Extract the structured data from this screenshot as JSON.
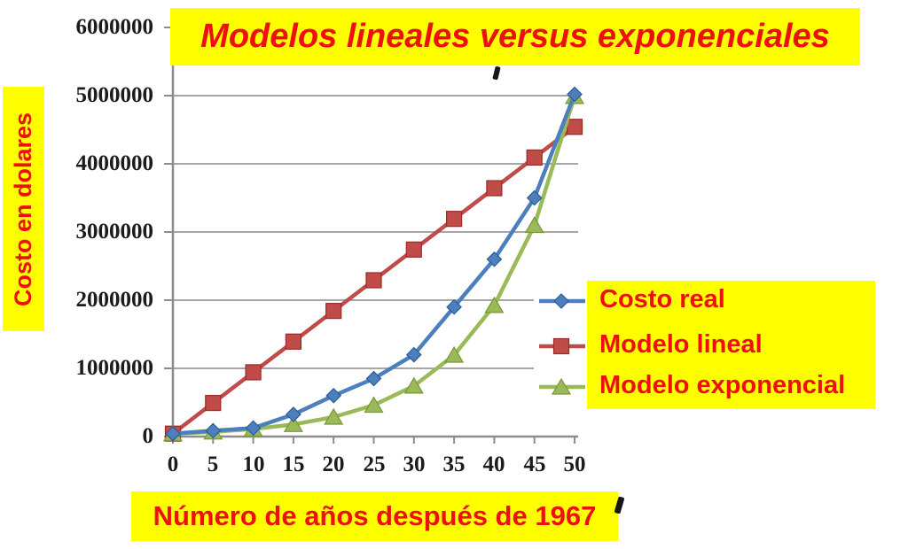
{
  "title": {
    "text": "Modelos lineales versus exponenciales"
  },
  "y_axis": {
    "label": "Costo en dolares",
    "ticks": [
      "6000000",
      "5000000",
      "4000000",
      "3000000",
      "2000000",
      "1000000",
      "0"
    ]
  },
  "x_axis": {
    "label": "Número de años después de 1967",
    "ticks": [
      "0",
      "5",
      "10",
      "15",
      "20",
      "25",
      "30",
      "35",
      "40",
      "45",
      "50"
    ]
  },
  "legend": {
    "items": [
      {
        "label": "Costo real",
        "color": "#4c7fbb",
        "marker": "diamond"
      },
      {
        "label": "Modelo lineal",
        "color": "#bf4c49",
        "marker": "square"
      },
      {
        "label": "Modelo exponencial",
        "color": "#9aba59",
        "marker": "triangle"
      }
    ]
  },
  "colors": {
    "background": "#ffffff",
    "highlight_yellow": "#ffff00",
    "label_red": "#ee0f0f",
    "grid": "#a6a6a6",
    "axis": "#8c8c8c",
    "tick_text": "#1c1c1c",
    "series_blue": "#4c7fbb",
    "series_red": "#bf4c49",
    "series_green": "#9aba59"
  },
  "chart_data": {
    "type": "line",
    "title": "Modelos lineales versus exponenciales",
    "xlabel": "Número de años después de 1967",
    "ylabel": "Costo en dolares",
    "x": [
      0,
      5,
      10,
      15,
      20,
      25,
      30,
      35,
      40,
      45,
      50
    ],
    "series": [
      {
        "name": "Costo real",
        "color": "#4c7fbb",
        "marker": "diamond",
        "values": [
          42500,
          86100,
          125000,
          324300,
          600000,
          850000,
          1200000,
          1900000,
          2600000,
          3500000,
          5020000
        ]
      },
      {
        "name": "Modelo lineal",
        "color": "#bf4c49",
        "marker": "square",
        "values": [
          42500,
          492500,
          942500,
          1392500,
          1842500,
          2292500,
          2742500,
          3192500,
          3642500,
          4092500,
          4542500
        ]
      },
      {
        "name": "Modelo exponencial",
        "color": "#9aba59",
        "marker": "triangle",
        "values": [
          42500,
          68400,
          110200,
          177500,
          285900,
          460500,
          741600,
          1194300,
          1923400,
          3097600,
          4988600
        ]
      }
    ],
    "xlim": [
      0,
      50
    ],
    "ylim": [
      0,
      6000000
    ],
    "grid": "horizontal",
    "legend_position": "right-overlay"
  }
}
